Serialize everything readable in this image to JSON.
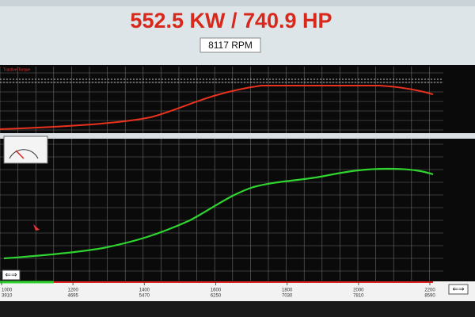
{
  "header": {
    "power": "552.5 KW / 740.9 HP",
    "rpm": "8117 RPM"
  },
  "top_panel": {
    "label": "Tractive Torque"
  },
  "axis": {
    "xlim": [
      1000,
      2200
    ],
    "ticks": [
      {
        "rpm": 1000,
        "speed": 3910
      },
      {
        "rpm": 1200,
        "speed": 4695
      },
      {
        "rpm": 1400,
        "speed": 5470
      },
      {
        "rpm": 1600,
        "speed": 6250
      },
      {
        "rpm": 1800,
        "speed": 7030
      },
      {
        "rpm": 2000,
        "speed": 7810
      },
      {
        "rpm": 2200,
        "speed": 8590
      }
    ]
  }
}
